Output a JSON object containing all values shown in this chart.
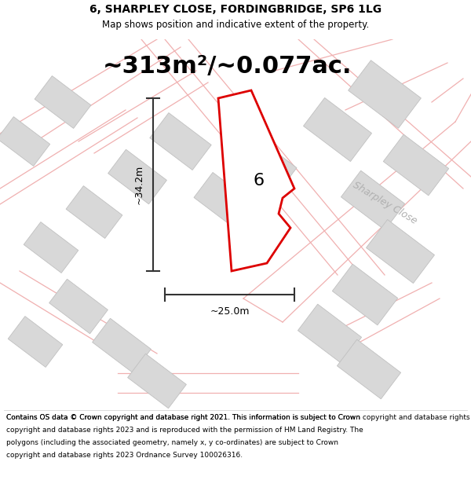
{
  "title": "6, SHARPLEY CLOSE, FORDINGBRIDGE, SP6 1LG",
  "subtitle": "Map shows position and indicative extent of the property.",
  "area_text": "~313m²/~0.077ac.",
  "plot_number": "6",
  "dim_width": "~25.0m",
  "dim_height": "~34.2m",
  "street_label": "Sharpley Close",
  "footer": "Contains OS data © Crown copyright and database right 2021. This information is subject to Crown copyright and database rights 2023 and is reproduced with the permission of HM Land Registry. The polygons (including the associated geometry, namely x, y co-ordinates) are subject to Crown copyright and database rights 2023 Ordnance Survey 100026316.",
  "bg_color": "#ffffff",
  "plot_color": "#dd0000",
  "building_color": "#d8d8d8",
  "building_edge": "#c0c0c0",
  "road_line_color": "#f0b0b0",
  "title_fontsize": 10,
  "subtitle_fontsize": 8.5,
  "area_fontsize": 22
}
